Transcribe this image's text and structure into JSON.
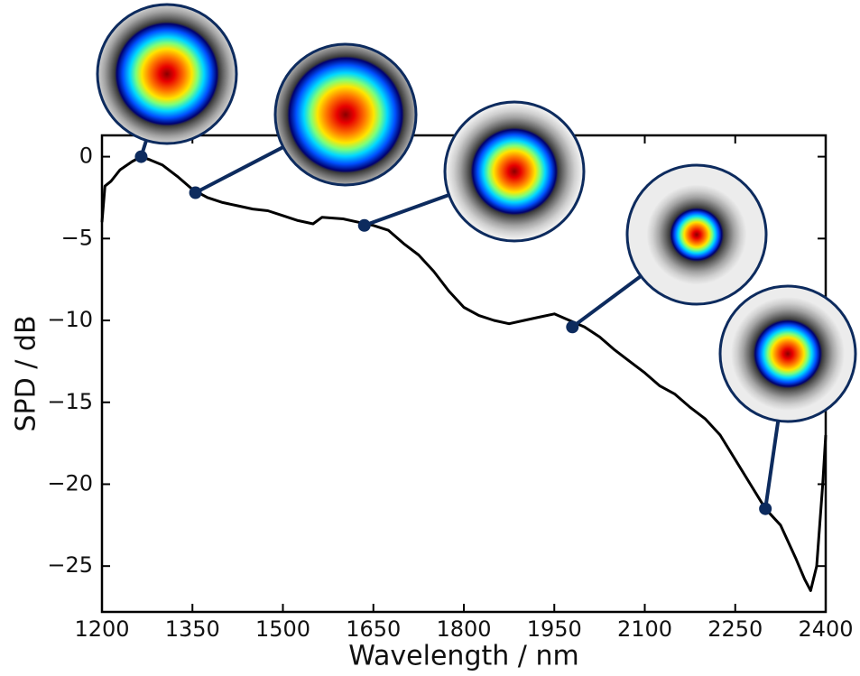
{
  "chart_data": {
    "type": "line",
    "xlabel": "Wavelength / nm",
    "ylabel": "SPD / dB",
    "x": [
      1200,
      1205,
      1215,
      1230,
      1250,
      1265,
      1280,
      1300,
      1325,
      1350,
      1375,
      1400,
      1425,
      1450,
      1475,
      1500,
      1525,
      1550,
      1565,
      1600,
      1625,
      1650,
      1675,
      1700,
      1725,
      1750,
      1775,
      1800,
      1825,
      1850,
      1875,
      1900,
      1925,
      1950,
      1975,
      2000,
      2025,
      2050,
      2075,
      2100,
      2125,
      2150,
      2175,
      2200,
      2225,
      2250,
      2275,
      2300,
      2325,
      2350,
      2365,
      2375,
      2385,
      2395,
      2400
    ],
    "series": [
      {
        "color": "#000000",
        "values": [
          -4,
          -1.8,
          -1.5,
          -0.8,
          -0.3,
          0,
          -0.2,
          -0.5,
          -1.2,
          -2.0,
          -2.5,
          -2.8,
          -3.0,
          -3.2,
          -3.3,
          -3.6,
          -3.9,
          -4.1,
          -3.7,
          -3.8,
          -4.0,
          -4.2,
          -4.5,
          -5.3,
          -6.0,
          -7.0,
          -8.2,
          -9.2,
          -9.7,
          -10.0,
          -10.2,
          -10.0,
          -9.8,
          -9.6,
          -10.0,
          -10.4,
          -11.0,
          -11.8,
          -12.5,
          -13.2,
          -14.0,
          -14.5,
          -15.3,
          -16.0,
          -17.0,
          -18.5,
          -20.0,
          -21.5,
          -22.5,
          -24.5,
          -25.8,
          -26.5,
          -25,
          -20,
          -17
        ]
      }
    ],
    "markers": {
      "color": "#0d2b5e",
      "x": [
        1265,
        1355,
        1635,
        1980,
        2300
      ],
      "values": [
        0,
        -2.2,
        -4.2,
        -10.4,
        -21.5
      ]
    },
    "xlim": [
      1200,
      2400
    ],
    "ylim": [
      -27.8,
      1.3
    ],
    "xticks": [
      1200,
      1350,
      1500,
      1650,
      1800,
      1950,
      2100,
      2250,
      2400
    ],
    "yticks": [
      {
        "value": -25,
        "label": "−25"
      },
      {
        "value": -20,
        "label": "−20"
      },
      {
        "value": -15,
        "label": "−15"
      },
      {
        "value": -10,
        "label": "−10"
      },
      {
        "value": -5,
        "label": "−5"
      },
      0
    ]
  }
}
